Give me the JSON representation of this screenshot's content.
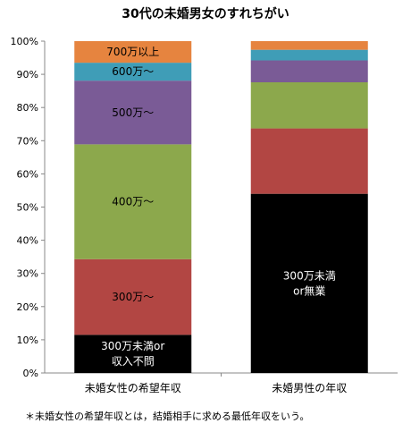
{
  "chart_data": {
    "type": "bar",
    "stacked": true,
    "normalized_percent": true,
    "title": "30代の未婚男女のすれちがい",
    "categories": [
      "未婚女性の希望年収",
      "未婚男性の年収"
    ],
    "ylim": [
      0,
      100
    ],
    "y_ticks": [
      "0%",
      "10%",
      "20%",
      "30%",
      "40%",
      "50%",
      "60%",
      "70%",
      "80%",
      "90%",
      "100%"
    ],
    "grid": false,
    "legend": "none",
    "series": [
      {
        "key": "s300under",
        "values": [
          11.5,
          54.0
        ],
        "color": "#000000",
        "text_color": "#ffffff",
        "labels": [
          "300万未満or\n収入不問",
          "300万未満\nor無業"
        ]
      },
      {
        "key": "s300",
        "values": [
          22.8,
          19.7
        ],
        "color": "#b24643",
        "text_color": "#000000",
        "labels": [
          "300万〜",
          ""
        ]
      },
      {
        "key": "s400",
        "values": [
          34.6,
          13.9
        ],
        "color": "#8ca84c",
        "text_color": "#000000",
        "labels": [
          "400万〜",
          ""
        ]
      },
      {
        "key": "s500",
        "values": [
          19.2,
          6.6
        ],
        "color": "#7a5b96",
        "text_color": "#000000",
        "labels": [
          "500万〜",
          ""
        ]
      },
      {
        "key": "s600",
        "values": [
          5.4,
          3.2
        ],
        "color": "#3f9db7",
        "text_color": "#000000",
        "labels": [
          "600万〜",
          ""
        ]
      },
      {
        "key": "s700",
        "values": [
          6.5,
          2.6
        ],
        "color": "#e6843f",
        "text_color": "#000000",
        "labels": [
          "700万以上",
          ""
        ]
      }
    ],
    "footnote": "＊未婚女性の希望年収とは，結婚相手に求める最低年収をいう。"
  }
}
